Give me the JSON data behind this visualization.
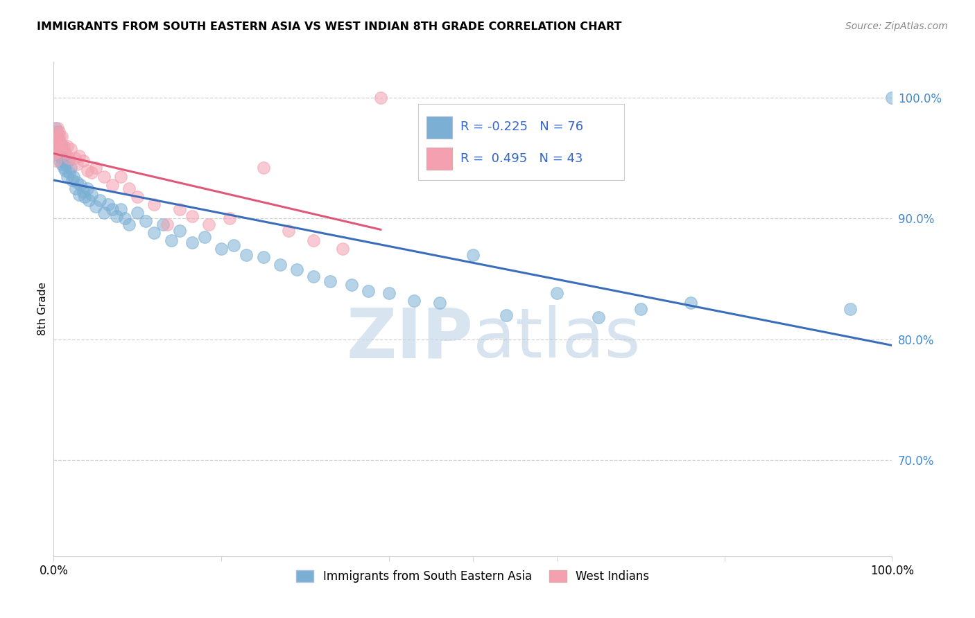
{
  "title": "IMMIGRANTS FROM SOUTH EASTERN ASIA VS WEST INDIAN 8TH GRADE CORRELATION CHART",
  "source": "Source: ZipAtlas.com",
  "ylabel": "8th Grade",
  "ytick_labels": [
    "100.0%",
    "90.0%",
    "80.0%",
    "70.0%"
  ],
  "ytick_values": [
    1.0,
    0.9,
    0.8,
    0.7
  ],
  "xlim": [
    0.0,
    1.0
  ],
  "ylim": [
    0.62,
    1.03
  ],
  "legend_label1": "Immigrants from South Eastern Asia",
  "legend_label2": "West Indians",
  "r1": -0.225,
  "n1": 76,
  "r2": 0.495,
  "n2": 43,
  "watermark_zip": "ZIP",
  "watermark_atlas": "atlas",
  "blue_color": "#7BAFD4",
  "pink_color": "#F4A0B0",
  "blue_line_color": "#3A6EBA",
  "pink_line_color": "#E05878",
  "blue_x": [
    0.001,
    0.002,
    0.002,
    0.003,
    0.003,
    0.004,
    0.004,
    0.005,
    0.005,
    0.006,
    0.006,
    0.007,
    0.007,
    0.008,
    0.008,
    0.009,
    0.01,
    0.01,
    0.011,
    0.012,
    0.013,
    0.014,
    0.015,
    0.016,
    0.018,
    0.019,
    0.02,
    0.022,
    0.024,
    0.026,
    0.028,
    0.03,
    0.032,
    0.035,
    0.037,
    0.04,
    0.042,
    0.045,
    0.05,
    0.055,
    0.06,
    0.065,
    0.07,
    0.075,
    0.08,
    0.085,
    0.09,
    0.1,
    0.11,
    0.12,
    0.13,
    0.14,
    0.15,
    0.165,
    0.18,
    0.2,
    0.215,
    0.23,
    0.25,
    0.27,
    0.29,
    0.31,
    0.33,
    0.355,
    0.375,
    0.4,
    0.43,
    0.46,
    0.5,
    0.54,
    0.6,
    0.65,
    0.7,
    0.76,
    0.95,
    1.0
  ],
  "blue_y": [
    0.97,
    0.965,
    0.975,
    0.968,
    0.958,
    0.962,
    0.972,
    0.96,
    0.968,
    0.955,
    0.965,
    0.958,
    0.948,
    0.962,
    0.952,
    0.95,
    0.96,
    0.945,
    0.95,
    0.942,
    0.955,
    0.94,
    0.945,
    0.935,
    0.948,
    0.938,
    0.942,
    0.932,
    0.935,
    0.925,
    0.93,
    0.92,
    0.928,
    0.922,
    0.918,
    0.925,
    0.915,
    0.92,
    0.91,
    0.915,
    0.905,
    0.912,
    0.908,
    0.902,
    0.908,
    0.9,
    0.895,
    0.905,
    0.898,
    0.888,
    0.895,
    0.882,
    0.89,
    0.88,
    0.885,
    0.875,
    0.878,
    0.87,
    0.868,
    0.862,
    0.858,
    0.852,
    0.848,
    0.845,
    0.84,
    0.838,
    0.832,
    0.83,
    0.87,
    0.82,
    0.838,
    0.818,
    0.825,
    0.83,
    0.825,
    1.0
  ],
  "pink_x": [
    0.001,
    0.002,
    0.002,
    0.003,
    0.003,
    0.004,
    0.004,
    0.005,
    0.005,
    0.006,
    0.006,
    0.007,
    0.008,
    0.009,
    0.01,
    0.012,
    0.014,
    0.016,
    0.018,
    0.02,
    0.025,
    0.028,
    0.03,
    0.035,
    0.04,
    0.045,
    0.05,
    0.06,
    0.07,
    0.08,
    0.09,
    0.1,
    0.12,
    0.135,
    0.15,
    0.165,
    0.185,
    0.21,
    0.25,
    0.28,
    0.31,
    0.345,
    0.39
  ],
  "pink_y": [
    0.955,
    0.96,
    0.948,
    0.965,
    0.955,
    0.97,
    0.958,
    0.975,
    0.965,
    0.96,
    0.972,
    0.968,
    0.958,
    0.962,
    0.968,
    0.96,
    0.955,
    0.96,
    0.95,
    0.958,
    0.95,
    0.945,
    0.952,
    0.948,
    0.94,
    0.938,
    0.942,
    0.935,
    0.928,
    0.935,
    0.925,
    0.918,
    0.912,
    0.895,
    0.908,
    0.902,
    0.895,
    0.9,
    0.942,
    0.89,
    0.882,
    0.875,
    1.0
  ]
}
